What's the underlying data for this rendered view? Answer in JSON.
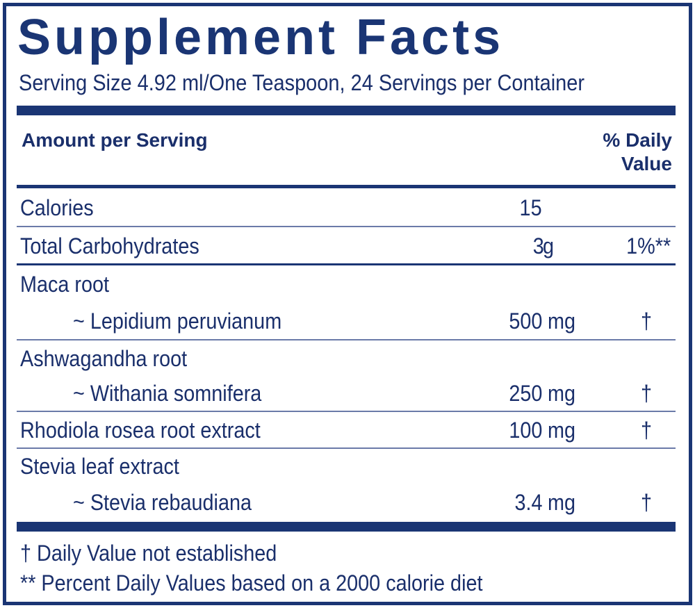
{
  "title": "Supplement Facts",
  "serving_size": "Serving Size 4.92 ml/One Teaspoon, 24 Servings per Container",
  "header": {
    "amount_per_serving": "Amount per Serving",
    "daily_value_line1": "% Daily",
    "daily_value_line2": "Value"
  },
  "rows": [
    {
      "name": "Calories",
      "amount": "15",
      "unit": "",
      "dv": ""
    },
    {
      "name": "Total Carbohydrates",
      "amount": "3",
      "unit": "g",
      "dv": "1%**"
    },
    {
      "name": "Maca root",
      "sub": "~ Lepidium peruvianum",
      "amount": "500",
      "unit": "mg",
      "dv": "†"
    },
    {
      "name": "Ashwagandha root",
      "sub": "~ Withania somnifera",
      "amount": "250",
      "unit": "mg",
      "dv": "†"
    },
    {
      "name": "Rhodiola rosea root extract",
      "amount": "100",
      "unit": "mg",
      "dv": "†"
    },
    {
      "name": "Stevia leaf extract",
      "sub": "~ Stevia rebaudiana",
      "amount": "3.4",
      "unit": "mg",
      "dv": "†"
    }
  ],
  "footnotes": {
    "dagger": "† Daily Value not established",
    "double_star": "** Percent Daily Values based on a 2000 calorie diet"
  },
  "colors": {
    "primary": "#1a3574",
    "text": "#1a2f6b",
    "rule": "#6a7aa8"
  }
}
